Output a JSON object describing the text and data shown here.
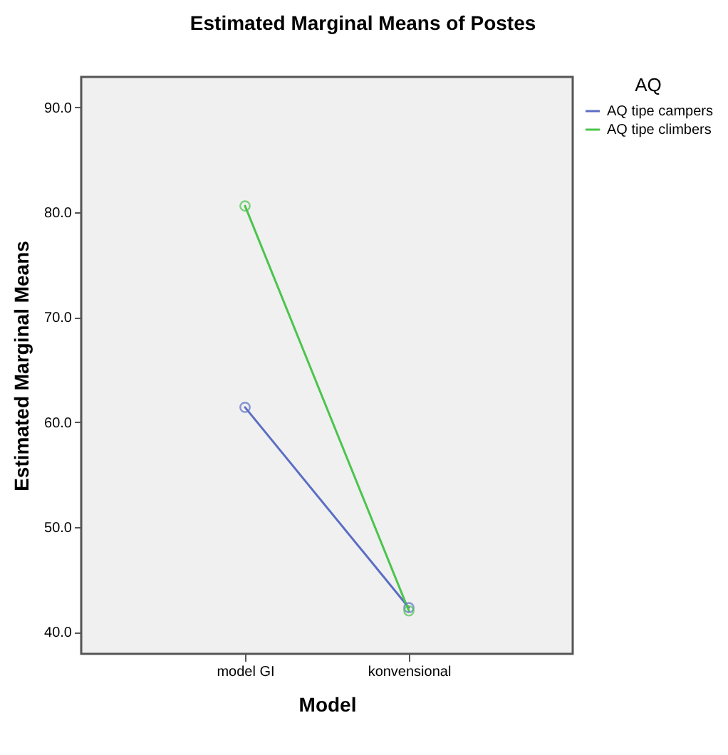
{
  "chart_data": {
    "type": "line",
    "title": "Estimated Marginal Means of Postes",
    "xlabel": "Model",
    "ylabel": "Estimated Marginal Means",
    "legend_title": "AQ",
    "categories": [
      "model GI",
      "konvensional"
    ],
    "series": [
      {
        "name": "AQ tipe campers",
        "color": "#5b6ec4",
        "values": [
          61.4,
          42.3
        ]
      },
      {
        "name": "AQ tipe climbers",
        "color": "#4cc44c",
        "values": [
          80.6,
          42.0
        ]
      }
    ],
    "ylim": [
      37.9,
      92.9
    ],
    "yticks": [
      {
        "value": 40,
        "label": "40.0"
      },
      {
        "value": 50,
        "label": "50.0"
      },
      {
        "value": 60,
        "label": "60.0"
      },
      {
        "value": 70,
        "label": "70.0"
      },
      {
        "value": 80,
        "label": "80.0"
      },
      {
        "value": 90,
        "label": "90.0"
      }
    ],
    "grid": false,
    "legend": "top right",
    "marker": "circle",
    "line_style": "solid"
  }
}
